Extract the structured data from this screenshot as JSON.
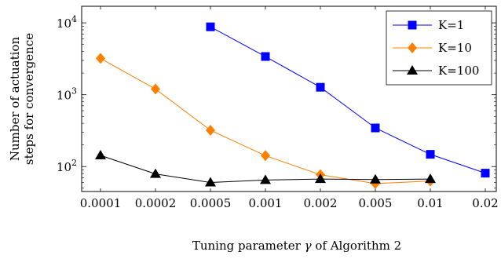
{
  "chart_data": {
    "type": "line",
    "xlabel_prefix": "Tuning parameter ",
    "xlabel_symbol": "γ",
    "xlabel_suffix": " of Algorithm 2",
    "ylabel_lines": [
      "Number of actuation",
      "steps for convergence"
    ],
    "x_ticks": [
      {
        "value": 0.0001,
        "label": "0.0001"
      },
      {
        "value": 0.0002,
        "label": "0.0002"
      },
      {
        "value": 0.0005,
        "label": "0.0005"
      },
      {
        "value": 0.001,
        "label": "0.001"
      },
      {
        "value": 0.002,
        "label": "0.002"
      },
      {
        "value": 0.005,
        "label": "0.005"
      },
      {
        "value": 0.01,
        "label": "0.01"
      },
      {
        "value": 0.02,
        "label": "0.02"
      }
    ],
    "x_scale": "categorical",
    "y_scale": "log",
    "ylim": [
      45,
      17000
    ],
    "y_ticks": [
      {
        "value": 100,
        "base": "10",
        "exp": "2"
      },
      {
        "value": 1000,
        "base": "10",
        "exp": "3"
      },
      {
        "value": 10000,
        "base": "10",
        "exp": "4"
      }
    ],
    "grid": false,
    "legend_position": "top-right",
    "series": [
      {
        "name": "K=1",
        "color": "#0000ff",
        "marker": "square",
        "points": [
          {
            "x": 0.0005,
            "y": 8800
          },
          {
            "x": 0.001,
            "y": 3400
          },
          {
            "x": 0.002,
            "y": 1270
          },
          {
            "x": 0.005,
            "y": 345
          },
          {
            "x": 0.01,
            "y": 148
          },
          {
            "x": 0.02,
            "y": 81
          }
        ]
      },
      {
        "name": "K=10",
        "color": "#ff8000",
        "marker": "diamond",
        "points": [
          {
            "x": 0.0001,
            "y": 3200
          },
          {
            "x": 0.0002,
            "y": 1200
          },
          {
            "x": 0.0005,
            "y": 320
          },
          {
            "x": 0.001,
            "y": 142
          },
          {
            "x": 0.002,
            "y": 77
          },
          {
            "x": 0.005,
            "y": 58
          },
          {
            "x": 0.01,
            "y": 63
          }
        ]
      },
      {
        "name": "K=100",
        "color": "#000000",
        "marker": "triangle",
        "points": [
          {
            "x": 0.0001,
            "y": 143
          },
          {
            "x": 0.0002,
            "y": 79
          },
          {
            "x": 0.0005,
            "y": 60
          },
          {
            "x": 0.001,
            "y": 65
          },
          {
            "x": 0.002,
            "y": 67
          },
          {
            "x": 0.005,
            "y": 66
          },
          {
            "x": 0.01,
            "y": 67
          }
        ]
      }
    ]
  }
}
